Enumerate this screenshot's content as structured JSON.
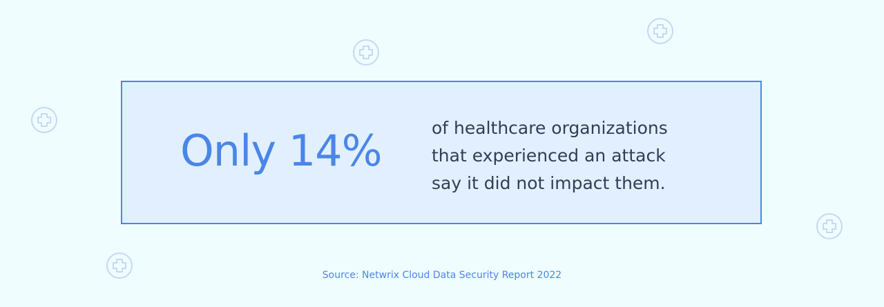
{
  "stat": {
    "headline": "Only 14%",
    "lines": [
      "of healthcare organizations",
      "that experienced an attack",
      "say it did not impact them."
    ]
  },
  "source": "Source: Netwrix Cloud Data Security Report 2022",
  "colors": {
    "background": "#effdff",
    "card_background": "#e2effe",
    "accent": "#4a86e6",
    "text": "#303e57",
    "icon": "#c6d8f4"
  },
  "decorations": {
    "icon": "plus-circle-icon",
    "count": 5
  }
}
